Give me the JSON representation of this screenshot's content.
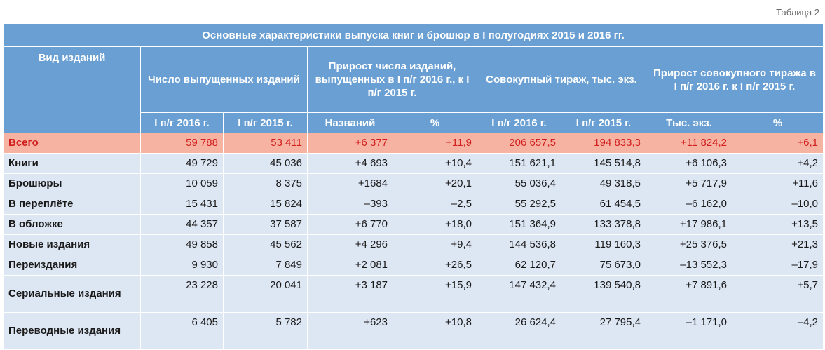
{
  "caption": "Таблица 2",
  "title": "Основные характеристики выпуска книг и брошюр в I полугодиях 2015 и 2016 гг.",
  "headers": {
    "vid": "Вид изданий",
    "count": "Число выпущенных изданий",
    "growth_count": "Прирост числа изданий, выпущенных в I п/г 2016 г., к I п/г 2015 г.",
    "circulation": "Совокупный тираж, тыс. экз.",
    "growth_circ": "Прирост совокупного тиража в I п/г 2016 г. к I п/г 2015 г.",
    "sub": [
      "I п/г 2016 г.",
      "I п/г 2015 г.",
      "Названий",
      "%",
      "I п/г 2016 г.",
      "I п/г 2015 г.",
      "Тыс. экз.",
      "%"
    ]
  },
  "rows": [
    {
      "name": "Всего",
      "c2016": "59 788",
      "c2015": "53 411",
      "gn": "+6 377",
      "gp": "+11,9",
      "t2016": "206 657,5",
      "t2015": "194 833,3",
      "gt": "+11 824,2",
      "gtp": "+6,1"
    },
    {
      "name": "Книги",
      "c2016": "49 729",
      "c2015": "45 036",
      "gn": "+4 693",
      "gp": "+10,4",
      "t2016": "151 621,1",
      "t2015": "145 514,8",
      "gt": "+6 106,3",
      "gtp": "+4,2"
    },
    {
      "name": "Брошюры",
      "c2016": "10 059",
      "c2015": "8 375",
      "gn": "+1684",
      "gp": "+20,1",
      "t2016": "55 036,4",
      "t2015": "49 318,5",
      "gt": "+5 717,9",
      "gtp": "+11,6"
    },
    {
      "name": "В переплёте",
      "c2016": "15 431",
      "c2015": "15 824",
      "gn": "–393",
      "gp": "–2,5",
      "t2016": "55 292,5",
      "t2015": "61 454,5",
      "gt": "–6 162,0",
      "gtp": "–10,0"
    },
    {
      "name": "В обложке",
      "c2016": "44 357",
      "c2015": "37 587",
      "gn": "+6 770",
      "gp": "+18,0",
      "t2016": "151 364,9",
      "t2015": "133 378,8",
      "gt": "+17 986,1",
      "gtp": "+13,5"
    },
    {
      "name": "Новые издания",
      "c2016": "49 858",
      "c2015": "45 562",
      "gn": "+4 296",
      "gp": "+9,4",
      "t2016": "144 536,8",
      "t2015": "119 160,3",
      "gt": "+25 376,5",
      "gtp": "+21,3"
    },
    {
      "name": "Переиздания",
      "c2016": "9 930",
      "c2015": "7 849",
      "gn": "+2 081",
      "gp": "+26,5",
      "t2016": "62 120,7",
      "t2015": "75 673,0",
      "gt": "–13 552,3",
      "gtp": "–17,9"
    },
    {
      "name": "Сериальные издания",
      "c2016": "23 228",
      "c2015": "20 041",
      "gn": "+3 187",
      "gp": "+15,9",
      "t2016": "147 432,4",
      "t2015": "139 540,8",
      "gt": "+7 891,6",
      "gtp": "+5,7"
    },
    {
      "name": "Переводные издания",
      "c2016": "6 405",
      "c2015": "5 782",
      "gn": "+623",
      "gp": "+10,8",
      "t2016": "26 624,4",
      "t2015": "27 795,4",
      "gt": "–1 171,0",
      "gtp": "–4,2"
    }
  ],
  "colors": {
    "title_bg": "#1a5aa6",
    "header_bg": "#6a9fd3",
    "row_bg": "#dde6f3",
    "total_bg": "#f6b3a2",
    "total_text": "#d21f1f"
  }
}
